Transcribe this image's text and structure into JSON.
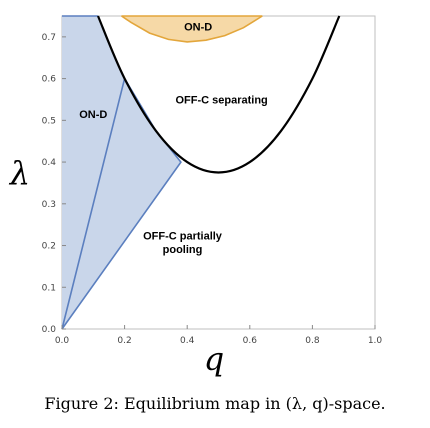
{
  "chart_data": {
    "type": "area",
    "xlabel": "q",
    "ylabel": "λ",
    "xlim": [
      0,
      1
    ],
    "ylim": [
      0,
      0.75
    ],
    "x_ticks": [
      "0.0",
      "0.2",
      "0.4",
      "0.6",
      "0.8",
      "1.0"
    ],
    "y_ticks": [
      "0.0",
      "0.1",
      "0.2",
      "0.3",
      "0.4",
      "0.5",
      "0.6",
      "0.7"
    ],
    "grid": false,
    "regions": [
      {
        "label": "ON-D",
        "fill": "#c9d6ea",
        "stroke": "#5b7fbf",
        "points": [
          [
            0.0,
            0.0
          ],
          [
            0.0,
            0.75
          ],
          [
            0.115,
            0.75
          ],
          [
            0.2,
            0.6
          ],
          [
            0.3,
            0.475
          ],
          [
            0.38,
            0.4
          ],
          [
            0.0,
            0.0
          ]
        ]
      },
      {
        "label": "ON-D",
        "fill": "#f6d9a7",
        "stroke": "#e3a63b",
        "points": [
          [
            0.19,
            0.75
          ],
          [
            0.22,
            0.735
          ],
          [
            0.28,
            0.709
          ],
          [
            0.34,
            0.694
          ],
          [
            0.4,
            0.688
          ],
          [
            0.46,
            0.692
          ],
          [
            0.52,
            0.703
          ],
          [
            0.58,
            0.722
          ],
          [
            0.64,
            0.75
          ]
        ]
      }
    ],
    "boundary_curve": {
      "color": "#000000",
      "points": [
        [
          0.115,
          0.75
        ],
        [
          0.2,
          0.6
        ],
        [
          0.3,
          0.475
        ],
        [
          0.4,
          0.4
        ],
        [
          0.5,
          0.375
        ],
        [
          0.6,
          0.4
        ],
        [
          0.7,
          0.475
        ],
        [
          0.8,
          0.6
        ],
        [
          0.886,
          0.75
        ]
      ]
    },
    "annotations": [
      {
        "text": "ON-D",
        "x": 0.1,
        "y": 0.505
      },
      {
        "text": "ON-D",
        "x": 0.435,
        "y": 0.715
      },
      {
        "text": "OFF-C separating",
        "x": 0.51,
        "y": 0.54
      },
      {
        "text": "OFF-C partially",
        "x": 0.385,
        "y": 0.215
      },
      {
        "text": "pooling",
        "x": 0.385,
        "y": 0.182
      }
    ]
  },
  "caption": "Figure 2: Equilibrium map in (λ, q)-space."
}
